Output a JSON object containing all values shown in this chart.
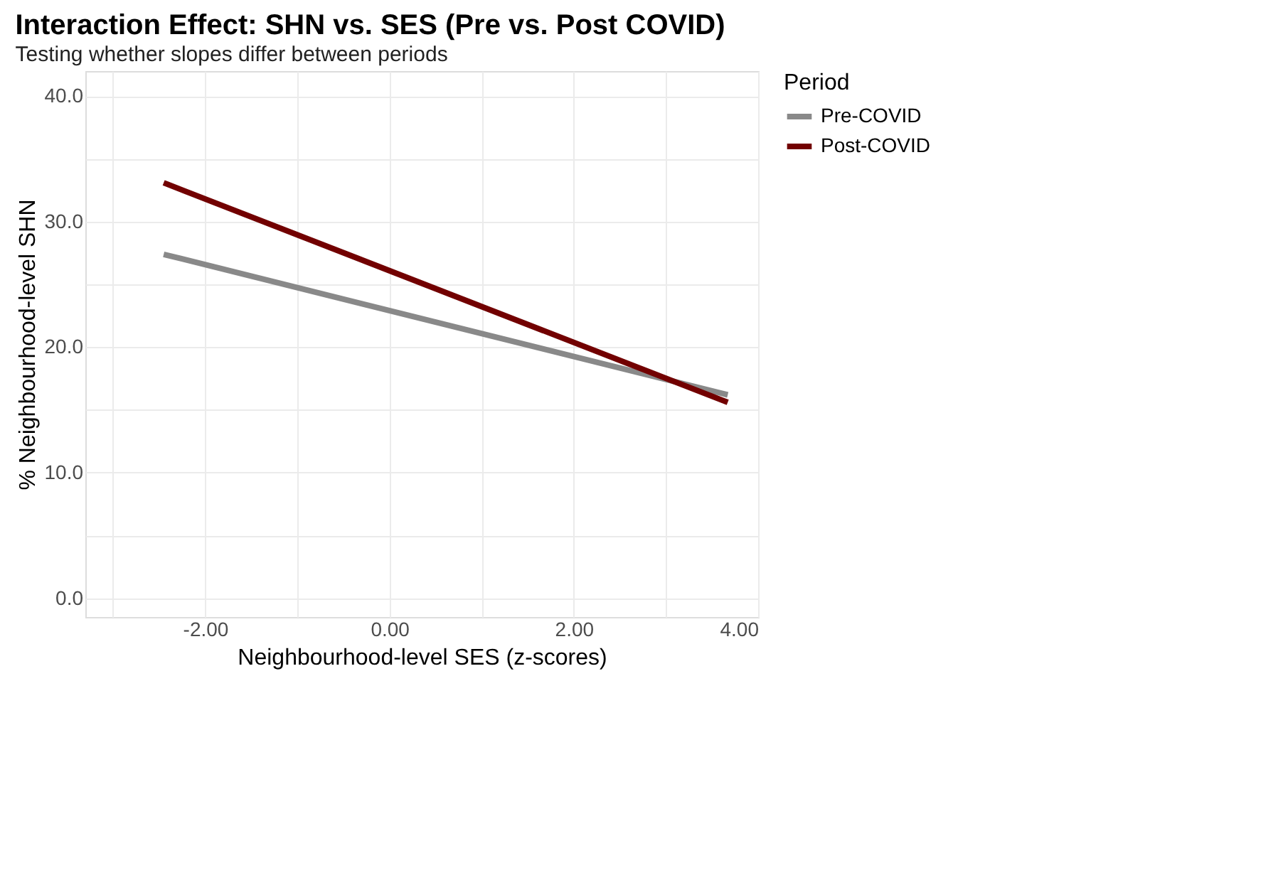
{
  "chart_data": {
    "type": "line",
    "title": "Interaction Effect: SHN vs. SES (Pre vs. Post COVID)",
    "subtitle": "Testing whether slopes differ between periods",
    "xlabel": "Neighbourhood-level SES (z-scores)",
    "ylabel": "% Neighbourhood-level SHN",
    "legend_title": "Period",
    "x": [
      -2.45,
      3.67
    ],
    "series": [
      {
        "name": "Pre-COVID",
        "color": "#898989",
        "values": [
          27.4,
          16.2
        ]
      },
      {
        "name": "Post-COVID",
        "color": "#720000",
        "values": [
          33.1,
          15.6
        ]
      }
    ],
    "xlim": [
      -3.3,
      4.0
    ],
    "ylim": [
      -1.5,
      42
    ],
    "xticks": [
      {
        "value": -3,
        "label": null
      },
      {
        "value": -2,
        "label": "-2.00"
      },
      {
        "value": -1,
        "label": null
      },
      {
        "value": 0,
        "label": "0.00"
      },
      {
        "value": 1,
        "label": null
      },
      {
        "value": 2,
        "label": "2.00"
      },
      {
        "value": 3,
        "label": null
      },
      {
        "value": 4,
        "label": "4.00"
      }
    ],
    "yticks": [
      {
        "value": 0,
        "label": "0.0"
      },
      {
        "value": 5,
        "label": null
      },
      {
        "value": 10,
        "label": "10.0"
      },
      {
        "value": 15,
        "label": null
      },
      {
        "value": 20,
        "label": "20.0"
      },
      {
        "value": 25,
        "label": null
      },
      {
        "value": 30,
        "label": "30.0"
      },
      {
        "value": 35,
        "label": null
      },
      {
        "value": 40,
        "label": "40.0"
      }
    ],
    "grid": true,
    "legend": "right",
    "marker": "none",
    "line_style": "solid"
  }
}
